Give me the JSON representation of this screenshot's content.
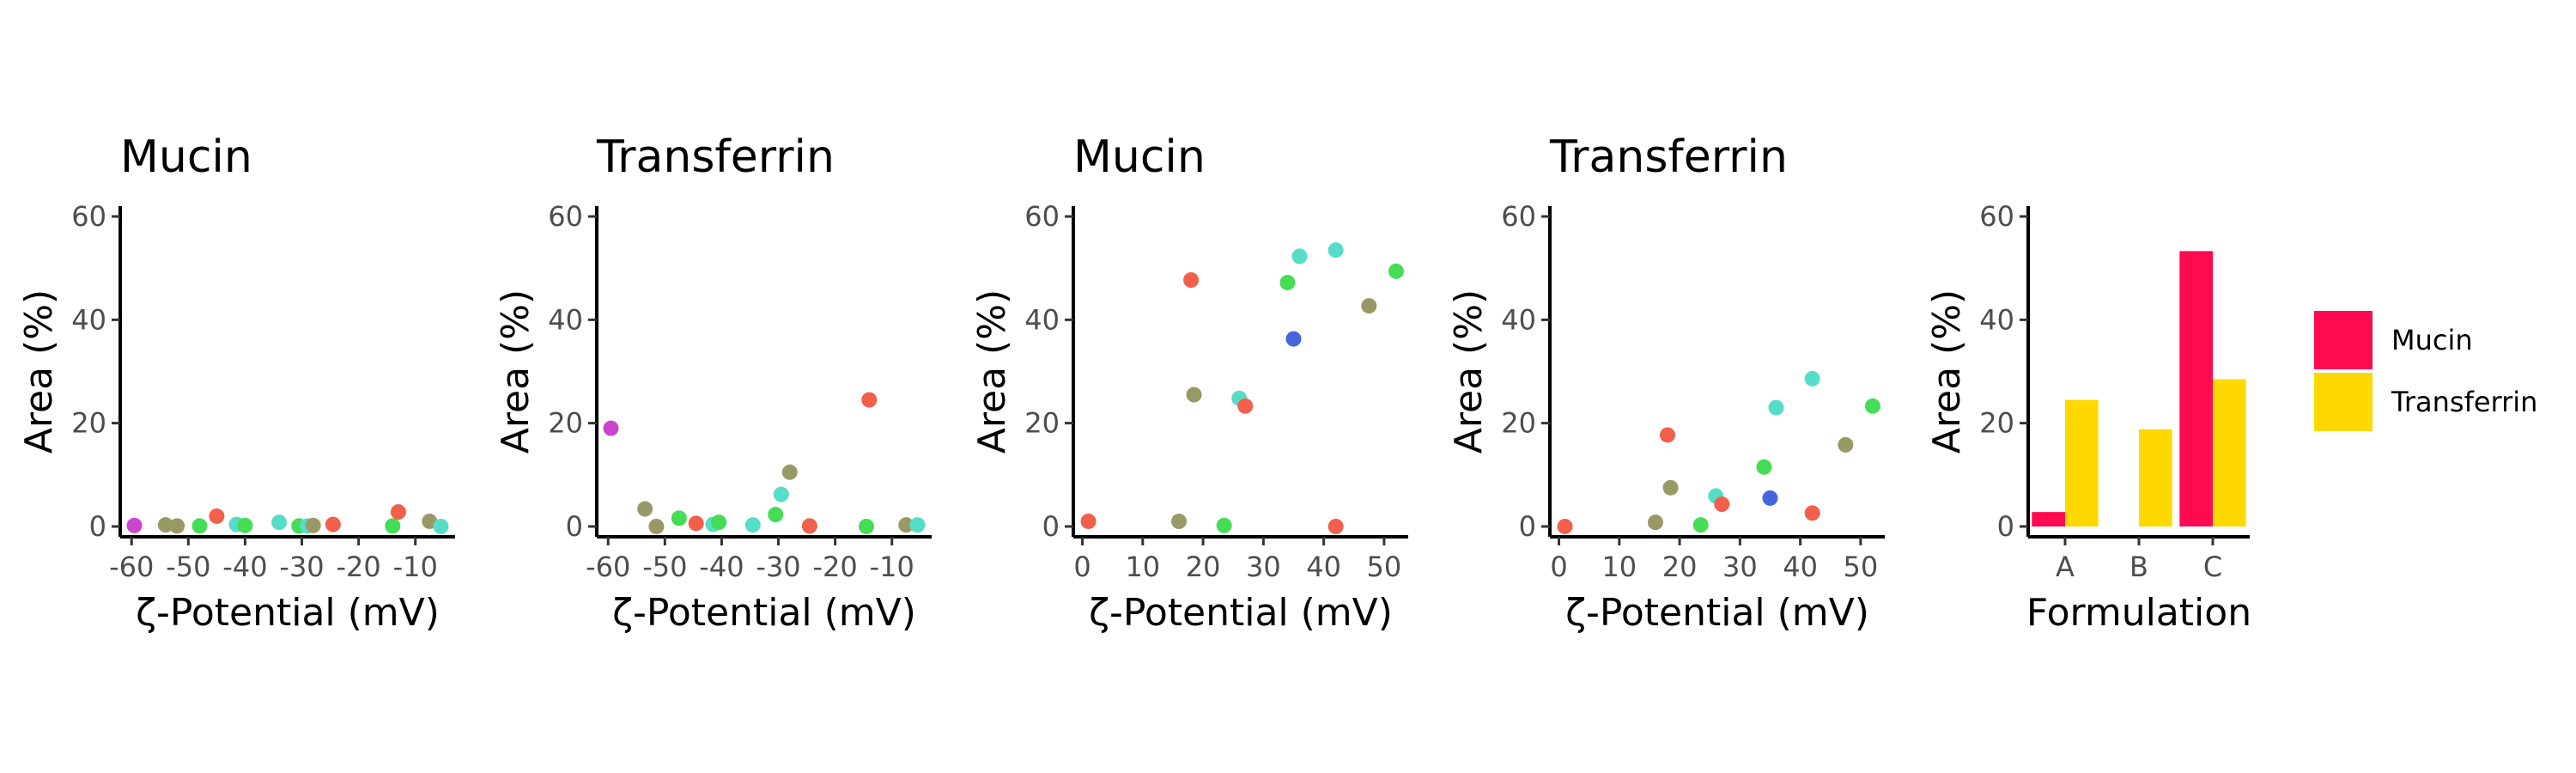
{
  "panels": [
    {
      "type": "scatter",
      "title": "Mucin",
      "xlabel": "ζ-Potential (mV)",
      "ylabel": "Area (%)",
      "xlim": [
        -62,
        -3
      ],
      "ylim": [
        -2,
        62
      ],
      "xticks": [
        -60,
        -50,
        -40,
        -30,
        -20,
        -10
      ],
      "xtick_labels": [
        "-60",
        "-50",
        "-40",
        "-30",
        "-20",
        "-10"
      ],
      "yticks": [
        0,
        20,
        40,
        60
      ],
      "ytick_labels": [
        "0",
        "20",
        "40",
        "60"
      ],
      "points": [
        {
          "x": -59.5,
          "y": 0.2,
          "color": "#cc44cc"
        },
        {
          "x": -54,
          "y": 0.3,
          "color": "#999966"
        },
        {
          "x": -52,
          "y": 0.1,
          "color": "#999966"
        },
        {
          "x": -48,
          "y": 0.1,
          "color": "#44dd55"
        },
        {
          "x": -45,
          "y": 2.0,
          "color": "#f25f4a"
        },
        {
          "x": -41.5,
          "y": 0.4,
          "color": "#55ddc8"
        },
        {
          "x": -40,
          "y": 0.2,
          "color": "#44dd55"
        },
        {
          "x": -34,
          "y": 0.8,
          "color": "#55ddc8"
        },
        {
          "x": -30.5,
          "y": 0.1,
          "color": "#44dd55"
        },
        {
          "x": -29,
          "y": 0.1,
          "color": "#55ddc8"
        },
        {
          "x": -28,
          "y": 0.2,
          "color": "#999966"
        },
        {
          "x": -24.5,
          "y": 0.4,
          "color": "#f25f4a"
        },
        {
          "x": -14,
          "y": 0.1,
          "color": "#44dd55"
        },
        {
          "x": -13,
          "y": 2.8,
          "color": "#f25f4a"
        },
        {
          "x": -7.5,
          "y": 1.0,
          "color": "#999966"
        },
        {
          "x": -5.5,
          "y": 0.0,
          "color": "#55ddc8"
        }
      ]
    },
    {
      "type": "scatter",
      "title": "Transferrin",
      "xlabel": "ζ-Potential (mV)",
      "ylabel": "Area (%)",
      "xlim": [
        -62,
        -3
      ],
      "ylim": [
        -2,
        62
      ],
      "xticks": [
        -60,
        -50,
        -40,
        -30,
        -20,
        -10
      ],
      "xtick_labels": [
        "-60",
        "-50",
        "-40",
        "-30",
        "-20",
        "-10"
      ],
      "yticks": [
        0,
        20,
        40,
        60
      ],
      "ytick_labels": [
        "0",
        "20",
        "40",
        "60"
      ],
      "points": [
        {
          "x": -59.5,
          "y": 19.0,
          "color": "#cc44cc"
        },
        {
          "x": -53.5,
          "y": 3.4,
          "color": "#999966"
        },
        {
          "x": -51.5,
          "y": 0.0,
          "color": "#999966"
        },
        {
          "x": -47.5,
          "y": 1.6,
          "color": "#44dd55"
        },
        {
          "x": -44.5,
          "y": 0.6,
          "color": "#f25f4a"
        },
        {
          "x": -41.5,
          "y": 0.4,
          "color": "#55ddc8"
        },
        {
          "x": -40.5,
          "y": 0.8,
          "color": "#44dd55"
        },
        {
          "x": -34.5,
          "y": 0.3,
          "color": "#55ddc8"
        },
        {
          "x": -30.5,
          "y": 2.3,
          "color": "#44dd55"
        },
        {
          "x": -29.5,
          "y": 6.2,
          "color": "#55ddc8"
        },
        {
          "x": -28,
          "y": 10.5,
          "color": "#999966"
        },
        {
          "x": -24.5,
          "y": 0.1,
          "color": "#f25f4a"
        },
        {
          "x": -14,
          "y": 24.5,
          "color": "#f25f4a"
        },
        {
          "x": -14.5,
          "y": 0.0,
          "color": "#44dd55"
        },
        {
          "x": -7.5,
          "y": 0.3,
          "color": "#999966"
        },
        {
          "x": -5.5,
          "y": 0.3,
          "color": "#55ddc8"
        }
      ]
    },
    {
      "type": "scatter",
      "title": "Mucin",
      "xlabel": "ζ-Potential (mV)",
      "ylabel": "Area (%)",
      "xlim": [
        -1.5,
        54
      ],
      "ylim": [
        -2,
        62
      ],
      "xticks": [
        0,
        10,
        20,
        30,
        40,
        50
      ],
      "xtick_labels": [
        "0",
        "10",
        "20",
        "30",
        "40",
        "50"
      ],
      "yticks": [
        0,
        20,
        40,
        60
      ],
      "ytick_labels": [
        "0",
        "20",
        "40",
        "60"
      ],
      "points": [
        {
          "x": 1,
          "y": 1.0,
          "color": "#f25f4a"
        },
        {
          "x": 16,
          "y": 1.0,
          "color": "#999966"
        },
        {
          "x": 18,
          "y": 47.7,
          "color": "#f25f4a"
        },
        {
          "x": 18.5,
          "y": 25.5,
          "color": "#999966"
        },
        {
          "x": 23.5,
          "y": 0.2,
          "color": "#44dd55"
        },
        {
          "x": 26,
          "y": 24.8,
          "color": "#55ddc8"
        },
        {
          "x": 27,
          "y": 23.3,
          "color": "#f25f4a"
        },
        {
          "x": 34,
          "y": 47.2,
          "color": "#44dd55"
        },
        {
          "x": 35,
          "y": 36.3,
          "color": "#4466dd"
        },
        {
          "x": 36,
          "y": 52.3,
          "color": "#55ddc8"
        },
        {
          "x": 42,
          "y": 53.5,
          "color": "#55ddc8"
        },
        {
          "x": 42,
          "y": 0.0,
          "color": "#f25f4a"
        },
        {
          "x": 47.5,
          "y": 42.7,
          "color": "#999966"
        },
        {
          "x": 52,
          "y": 49.4,
          "color": "#44dd55"
        }
      ]
    },
    {
      "type": "scatter",
      "title": "Transferrin",
      "xlabel": "ζ-Potential (mV)",
      "ylabel": "Area (%)",
      "xlim": [
        -1.5,
        54
      ],
      "ylim": [
        -2,
        62
      ],
      "xticks": [
        0,
        10,
        20,
        30,
        40,
        50
      ],
      "xtick_labels": [
        "0",
        "10",
        "20",
        "30",
        "40",
        "50"
      ],
      "yticks": [
        0,
        20,
        40,
        60
      ],
      "ytick_labels": [
        "0",
        "20",
        "40",
        "60"
      ],
      "points": [
        {
          "x": 1,
          "y": 0.0,
          "color": "#f25f4a"
        },
        {
          "x": 16,
          "y": 0.8,
          "color": "#999966"
        },
        {
          "x": 18,
          "y": 17.7,
          "color": "#f25f4a"
        },
        {
          "x": 18.5,
          "y": 7.5,
          "color": "#999966"
        },
        {
          "x": 23.5,
          "y": 0.3,
          "color": "#44dd55"
        },
        {
          "x": 26,
          "y": 5.9,
          "color": "#55ddc8"
        },
        {
          "x": 27,
          "y": 4.3,
          "color": "#f25f4a"
        },
        {
          "x": 34,
          "y": 11.5,
          "color": "#44dd55"
        },
        {
          "x": 35,
          "y": 5.5,
          "color": "#4466dd"
        },
        {
          "x": 36,
          "y": 23.0,
          "color": "#55ddc8"
        },
        {
          "x": 42,
          "y": 28.6,
          "color": "#55ddc8"
        },
        {
          "x": 42,
          "y": 2.6,
          "color": "#f25f4a"
        },
        {
          "x": 47.5,
          "y": 15.8,
          "color": "#999966"
        },
        {
          "x": 52,
          "y": 23.3,
          "color": "#44dd55"
        }
      ]
    },
    {
      "type": "bar",
      "title": "",
      "xlabel": "Formulation",
      "ylabel": "Area (%)",
      "categories": [
        "A",
        "B",
        "C"
      ],
      "ylim": [
        -2,
        62
      ],
      "yticks": [
        0,
        20,
        40,
        60
      ],
      "ytick_labels": [
        "0",
        "20",
        "40",
        "60"
      ],
      "series": [
        {
          "name": "Mucin",
          "color": "#ff0a50",
          "values": [
            2.8,
            0.0,
            53.3
          ]
        },
        {
          "name": "Transferrin",
          "color": "#ffd800",
          "values": [
            24.5,
            18.8,
            28.5
          ]
        }
      ]
    }
  ],
  "legend": {
    "placement": "right",
    "entries": [
      {
        "label": "Mucin",
        "color": "#ff0a50"
      },
      {
        "label": "Transferrin",
        "color": "#ffd800"
      }
    ]
  }
}
